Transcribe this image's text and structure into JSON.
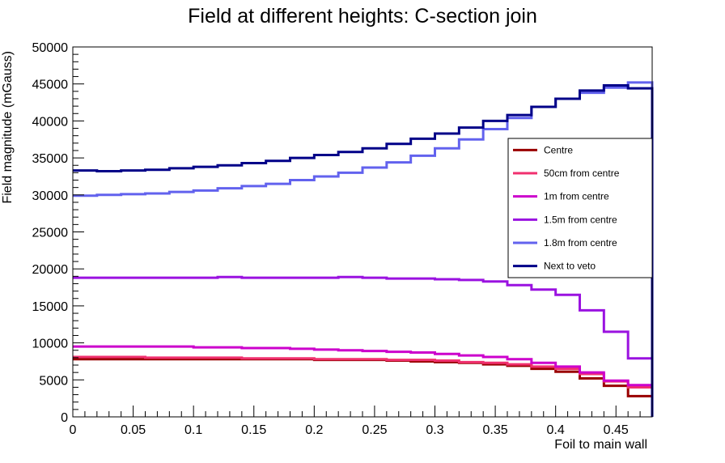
{
  "chart_data": {
    "type": "line",
    "style": "step-histogram",
    "title": "Field at different heights: C-section join",
    "xlabel": "Foil to main wall",
    "ylabel": "Field magnitude (mGauss)",
    "xlim": [
      0,
      0.48
    ],
    "ylim": [
      0,
      50000
    ],
    "x_ticks": [
      "0",
      "0.05",
      "0.1",
      "0.15",
      "0.2",
      "0.25",
      "0.3",
      "0.35",
      "0.4",
      "0.45"
    ],
    "y_ticks": [
      "0",
      "5000",
      "10000",
      "15000",
      "20000",
      "25000",
      "30000",
      "35000",
      "40000",
      "45000",
      "50000"
    ],
    "bin_edges": [
      0,
      0.02,
      0.04,
      0.06,
      0.08,
      0.1,
      0.12,
      0.14,
      0.16,
      0.18,
      0.2,
      0.22,
      0.24,
      0.26,
      0.28,
      0.3,
      0.32,
      0.34,
      0.36,
      0.38,
      0.4,
      0.42,
      0.44,
      0.46,
      0.48
    ],
    "legend_position": "right",
    "grid": false,
    "series": [
      {
        "name": "Centre",
        "color": "#990000",
        "values": [
          7800,
          7800,
          7800,
          7800,
          7800,
          7800,
          7800,
          7800,
          7800,
          7800,
          7700,
          7700,
          7700,
          7600,
          7500,
          7400,
          7300,
          7100,
          6900,
          6500,
          6100,
          5200,
          4200,
          2800
        ]
      },
      {
        "name": "50cm from centre",
        "color": "#f0306f",
        "values": [
          8100,
          8100,
          8100,
          8000,
          8000,
          8000,
          8000,
          7900,
          7900,
          7900,
          7800,
          7800,
          7800,
          7700,
          7700,
          7600,
          7400,
          7300,
          7100,
          6800,
          6500,
          5800,
          4800,
          4000
        ]
      },
      {
        "name": "1m from centre",
        "color": "#cc00cc",
        "values": [
          9500,
          9500,
          9500,
          9500,
          9500,
          9400,
          9400,
          9300,
          9300,
          9200,
          9100,
          9000,
          8900,
          8800,
          8700,
          8500,
          8300,
          8100,
          7800,
          7300,
          6800,
          6000,
          4900,
          4300
        ]
      },
      {
        "name": "1.5m from centre",
        "color": "#9a12e0",
        "values": [
          18800,
          18800,
          18800,
          18800,
          18800,
          18800,
          18900,
          18800,
          18800,
          18800,
          18800,
          18900,
          18800,
          18700,
          18700,
          18600,
          18500,
          18300,
          17800,
          17200,
          16500,
          14400,
          11500,
          7900
        ]
      },
      {
        "name": "1.8m from centre",
        "color": "#6262ee",
        "values": [
          29900,
          30000,
          30100,
          30200,
          30400,
          30600,
          30900,
          31200,
          31500,
          32000,
          32500,
          33000,
          33700,
          34400,
          35300,
          36300,
          37500,
          38900,
          40400,
          41900,
          43000,
          43800,
          44500,
          45200
        ]
      },
      {
        "name": "Next to veto",
        "color": "#000088",
        "values": [
          33300,
          33200,
          33300,
          33400,
          33600,
          33800,
          34000,
          34300,
          34600,
          35000,
          35400,
          35800,
          36300,
          36900,
          37600,
          38300,
          39100,
          40000,
          40800,
          41900,
          43000,
          44100,
          44800,
          44400
        ]
      }
    ]
  }
}
